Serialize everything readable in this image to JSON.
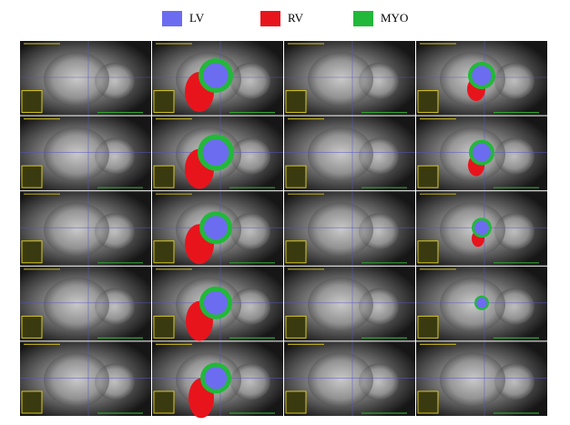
{
  "legend": {
    "items": [
      {
        "label": "LV",
        "color": "#6c6cf0"
      },
      {
        "label": "RV",
        "color": "#e8141c"
      },
      {
        "label": "MYO",
        "color": "#22b83a"
      }
    ]
  }
}
